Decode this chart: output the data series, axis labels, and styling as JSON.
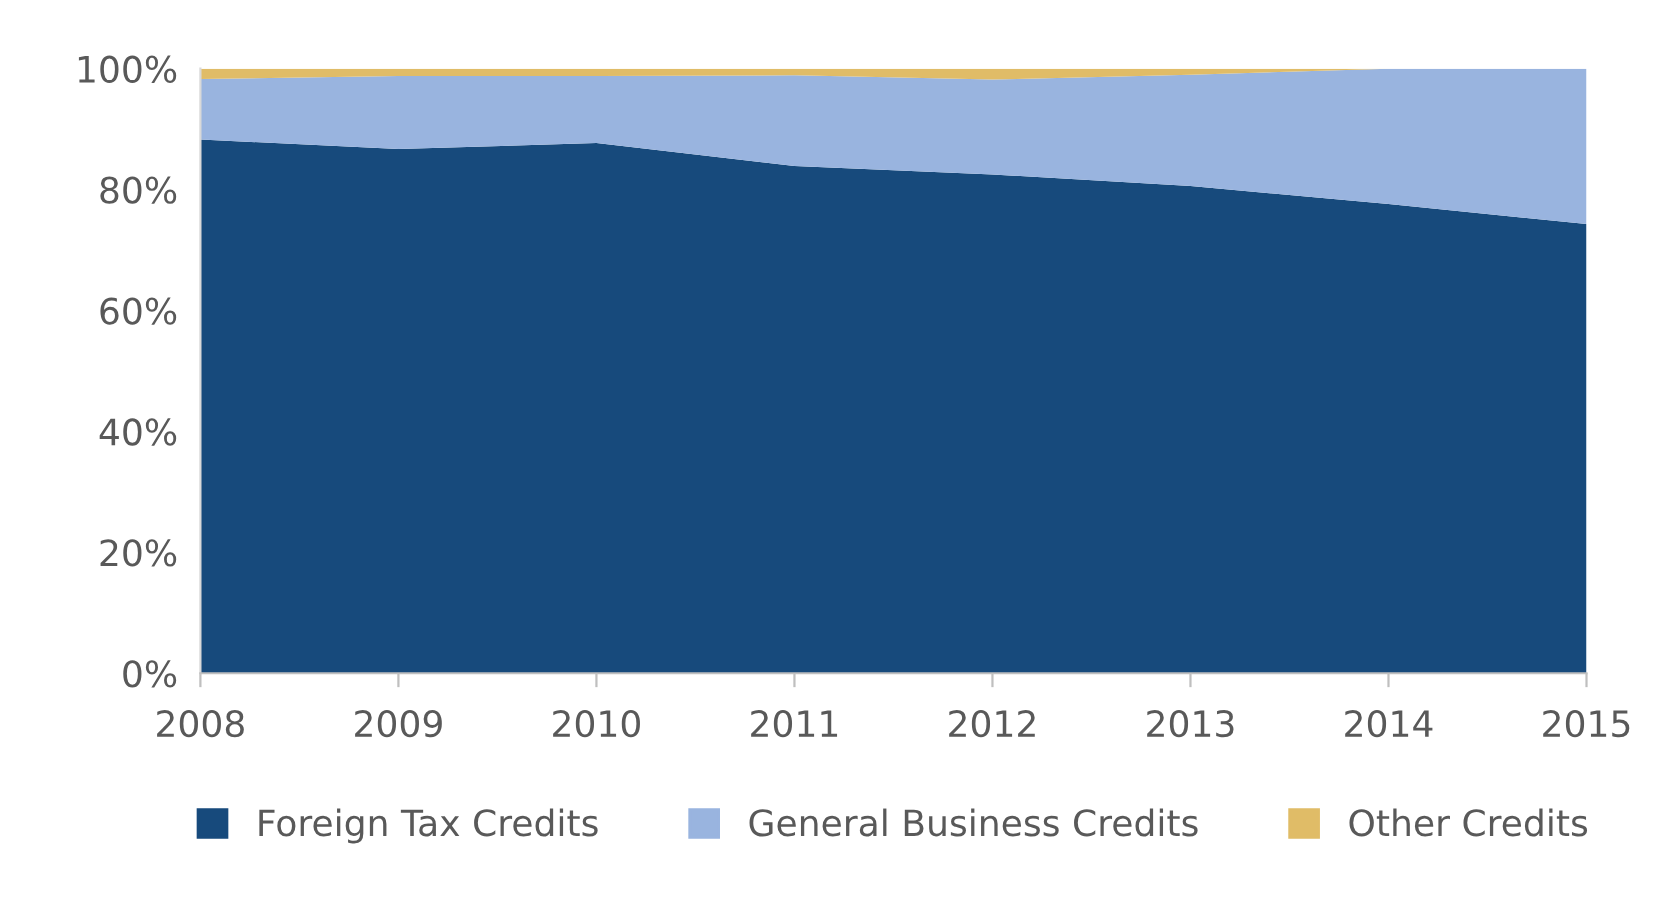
{
  "chart_data": {
    "type": "area",
    "stacked": true,
    "x": [
      2008,
      2009,
      2010,
      2011,
      2012,
      2013,
      2014,
      2015
    ],
    "xlim": [
      2008,
      2015
    ],
    "xticks": [
      2008,
      2009,
      2010,
      2011,
      2012,
      2013,
      2014,
      2015
    ],
    "ylim": [
      0,
      100
    ],
    "yticks": [
      {
        "value": 0,
        "label": "0%"
      },
      {
        "value": 20,
        "label": "20%"
      },
      {
        "value": 40,
        "label": "40%"
      },
      {
        "value": 60,
        "label": "60%"
      },
      {
        "value": 80,
        "label": "80%"
      },
      {
        "value": 100,
        "label": "100%"
      }
    ],
    "grid": false,
    "legend": "bottom",
    "series": [
      {
        "name": "Foreign Tax Credits",
        "color": "#174a7c",
        "values": [
          88.3,
          86.7,
          87.7,
          83.9,
          82.5,
          80.6,
          77.6,
          74.3
        ]
      },
      {
        "name": "General Business Credits",
        "color": "#99b4df",
        "values": [
          10,
          12.1,
          11.1,
          15.0,
          15.7,
          18.4,
          22.4,
          25.7
        ]
      },
      {
        "name": "Other Credits",
        "color": "#e0bc67",
        "values": [
          1.7,
          1.2,
          1.2,
          1.1,
          1.8,
          1.0,
          0,
          0
        ]
      }
    ]
  }
}
